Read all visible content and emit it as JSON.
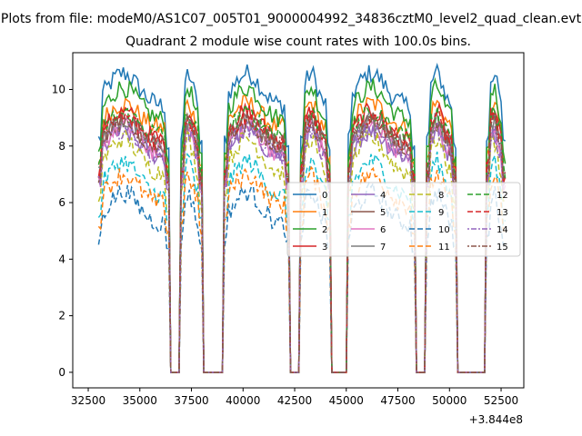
{
  "figure": {
    "suptitle": "Plots from file: modeM0/AS1C07_005T01_9000004992_34836cztM0_level2_quad_clean.evt"
  },
  "chart_data": {
    "type": "line",
    "title": "Quadrant 2 module wise count rates with 100.0s bins.",
    "xlabel": "",
    "ylabel": "",
    "x_offset_label": "+3.844e8",
    "x_offset": 384400000,
    "xlim": [
      31750,
      53600
    ],
    "ylim": [
      -0.55,
      11.3
    ],
    "x_ticks": [
      32500,
      35000,
      37500,
      40000,
      42500,
      45000,
      47500,
      50000,
      52500
    ],
    "x_tick_labels": [
      "32500",
      "35000",
      "37500",
      "40000",
      "42500",
      "45000",
      "47500",
      "50000",
      "52500"
    ],
    "y_ticks": [
      0,
      2,
      4,
      6,
      8,
      10
    ],
    "y_tick_labels": [
      "0",
      "2",
      "4",
      "6",
      "8",
      "10"
    ],
    "grid": false,
    "legend_placement": "center-right, 4 columns",
    "x_start": 33000,
    "x_end": 52700,
    "bin_width": 100,
    "segments": [
      [
        33000,
        36400
      ],
      [
        37000,
        38000
      ],
      [
        39100,
        42200
      ],
      [
        42800,
        44200
      ],
      [
        45100,
        48300
      ],
      [
        48900,
        50300
      ],
      [
        51800,
        52700
      ]
    ],
    "series": [
      {
        "name": "0",
        "level": 9.4,
        "peak": 10.7,
        "color": "#1f77b4",
        "dash": ""
      },
      {
        "name": "1",
        "level": 8.6,
        "peak": 9.6,
        "color": "#ff7f0e",
        "dash": ""
      },
      {
        "name": "2",
        "level": 8.9,
        "peak": 10.2,
        "color": "#2ca02c",
        "dash": ""
      },
      {
        "name": "3",
        "level": 8.2,
        "peak": 9.3,
        "color": "#d62728",
        "dash": ""
      },
      {
        "name": "4",
        "level": 7.6,
        "peak": 8.6,
        "color": "#9467bd",
        "dash": ""
      },
      {
        "name": "5",
        "level": 7.9,
        "peak": 9.0,
        "color": "#8c564b",
        "dash": ""
      },
      {
        "name": "6",
        "level": 7.7,
        "peak": 8.8,
        "color": "#e377c2",
        "dash": ""
      },
      {
        "name": "7",
        "level": 8.0,
        "peak": 9.0,
        "color": "#7f7f7f",
        "dash": ""
      },
      {
        "name": "8",
        "level": 7.0,
        "peak": 8.4,
        "color": "#bcbd22",
        "dash": "6,3"
      },
      {
        "name": "9",
        "level": 6.2,
        "peak": 7.6,
        "color": "#17becf",
        "dash": "6,3"
      },
      {
        "name": "10",
        "level": 5.2,
        "peak": 6.5,
        "color": "#1f77b4",
        "dash": "6,3"
      },
      {
        "name": "11",
        "level": 5.9,
        "peak": 7.1,
        "color": "#ff7f0e",
        "dash": "6,3"
      },
      {
        "name": "12",
        "level": 8.4,
        "peak": 9.2,
        "color": "#2ca02c",
        "dash": "6,3"
      },
      {
        "name": "13",
        "level": 8.1,
        "peak": 9.1,
        "color": "#d62728",
        "dash": "6,3"
      },
      {
        "name": "14",
        "level": 7.6,
        "peak": 8.7,
        "color": "#9467bd",
        "dash": "2,2,6,2"
      },
      {
        "name": "15",
        "level": 8.0,
        "peak": 8.9,
        "color": "#8c564b",
        "dash": "2,2,6,2"
      }
    ]
  }
}
